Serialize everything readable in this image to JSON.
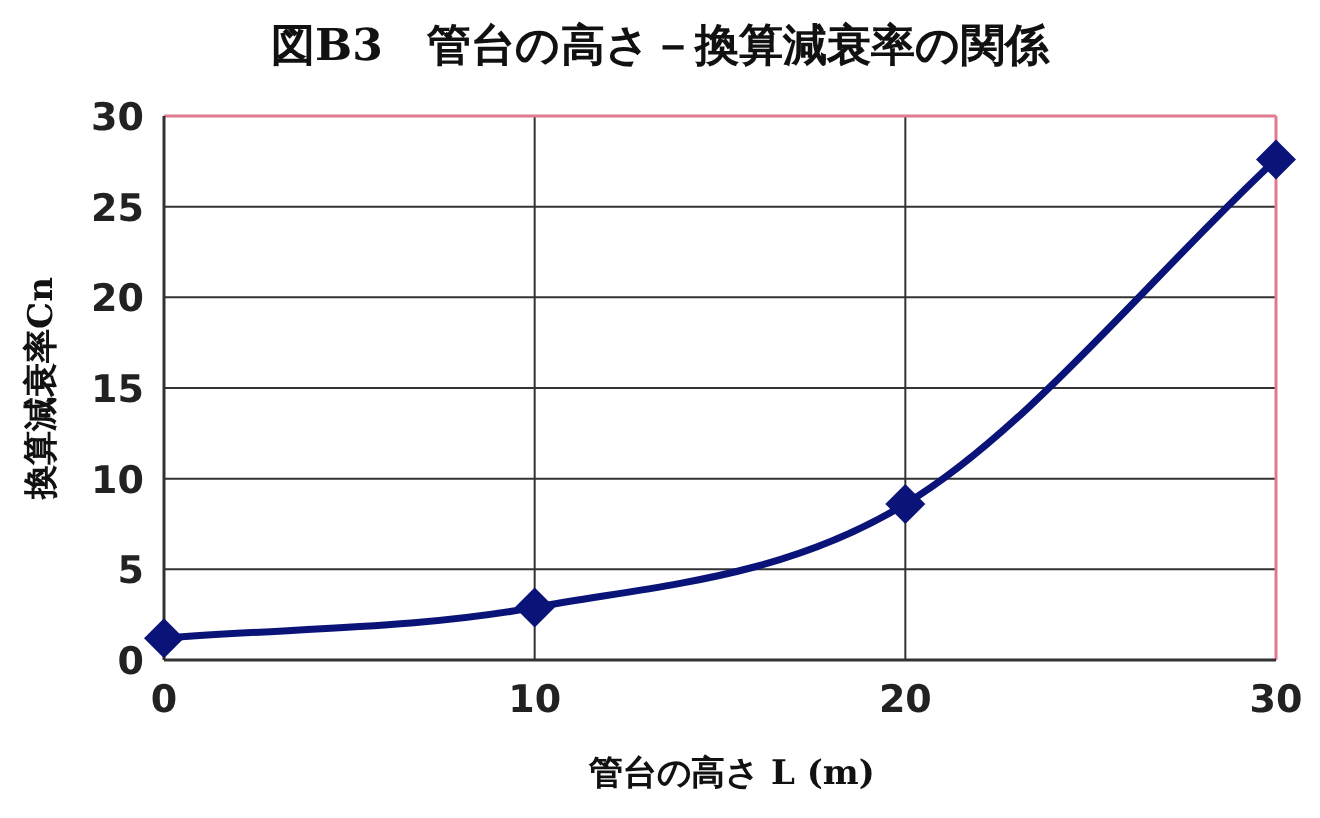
{
  "chart_data": {
    "type": "line",
    "title": "図B3　管台の高さ－換算減衰率の関係",
    "xlabel": "管台の高さ L (m)",
    "ylabel": "換算減衰率Cn",
    "x": [
      0,
      10,
      20,
      30
    ],
    "series": [
      {
        "color": "#0a1478",
        "values": [
          1.2,
          2.9,
          8.6,
          27.6
        ]
      }
    ],
    "xlim": [
      0,
      30
    ],
    "xticks": [
      0,
      10,
      20,
      30
    ],
    "ylim": [
      0,
      30
    ],
    "yticks": [
      0,
      5,
      10,
      15,
      20,
      25,
      30
    ],
    "grid": true,
    "marker": "diamond",
    "line_style": "solid"
  }
}
